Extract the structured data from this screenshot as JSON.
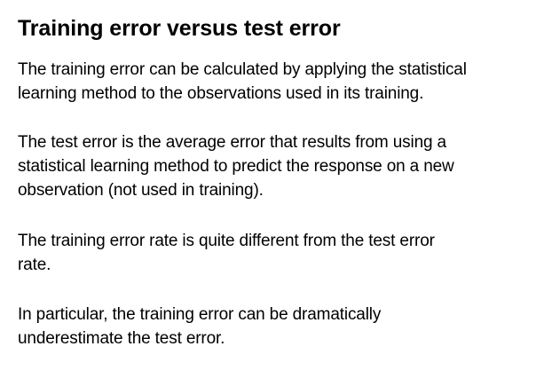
{
  "slide": {
    "title": "Training error versus test error",
    "paragraphs": [
      {
        "lines": [
          "The training error can be calculated by applying the statistical",
          "learning method to the observations used in its training."
        ]
      },
      {
        "lines": [
          "The test error is the average error that results from using a",
          "statistical learning method to predict the response on a new",
          "observation (not used in training)."
        ]
      },
      {
        "lines": [
          "The training error rate is quite different from the test error",
          "rate."
        ]
      },
      {
        "lines": [
          "In particular, the training error can be dramatically",
          "underestimate the test error."
        ]
      }
    ]
  }
}
